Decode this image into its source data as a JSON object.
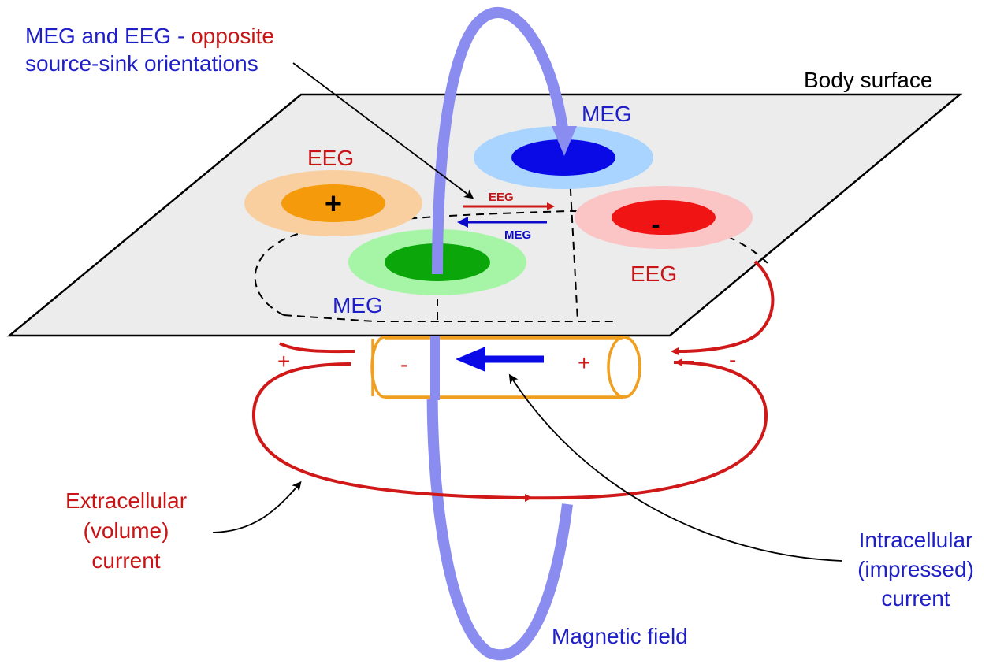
{
  "title": {
    "line1_a": "MEG and EEG - ",
    "line1_b": "opposite",
    "line2": "source-sink orientations"
  },
  "labels": {
    "body_surface": "Body surface",
    "meg_top": "MEG",
    "meg_bottom": "MEG",
    "eeg_left": "EEG",
    "eeg_right": "EEG",
    "arrow_eeg": "EEG",
    "arrow_meg": "MEG",
    "extracellular": [
      "Extracellular",
      "(volume)",
      "current"
    ],
    "intracellular": [
      "Intracellular",
      "(impressed)",
      "current"
    ],
    "magnetic_field": "Magnetic field"
  },
  "symbols": {
    "plus_blob": "+",
    "minus_blob": "-",
    "cyl_minus": "-",
    "cyl_plus": "+",
    "ext_plus_left": "+",
    "ext_minus_right": "-"
  },
  "colors": {
    "blue_text": "#1f1fc8",
    "red_text": "#c81414",
    "field_loop": "#8a8cf0",
    "current_red": "#d01818",
    "cylinder": "#f0a020",
    "plane_fill": "#ececec",
    "eeg_pos_outer": "#f9cfa0",
    "eeg_pos_inner": "#f59a0a",
    "eeg_neg_outer": "#fbc5c5",
    "eeg_neg_inner": "#f01414",
    "meg_in_outer": "#a8d4ff",
    "meg_in_inner": "#0a0ae6",
    "meg_out_outer": "#a6f5a6",
    "meg_out_inner": "#0aa60a"
  }
}
